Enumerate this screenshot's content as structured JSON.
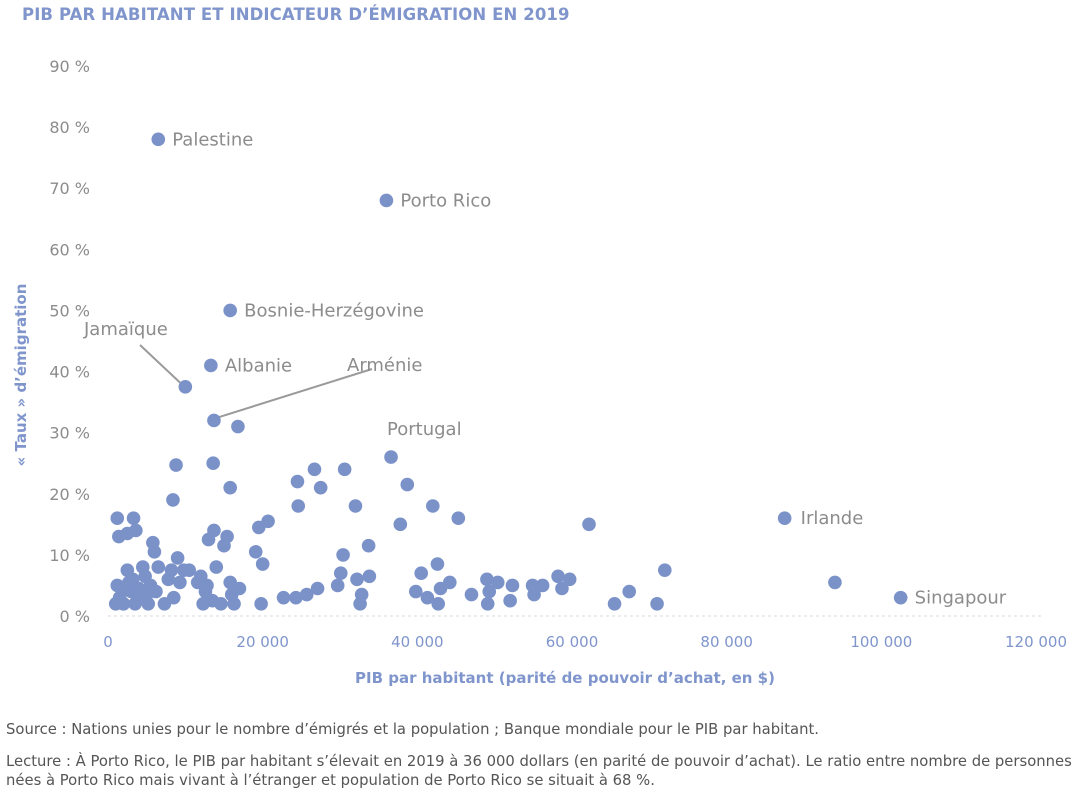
{
  "title": "PIB PAR HABITANT ET INDICATEUR D’ÉMIGRATION EN 2019",
  "source": "Source : Nations unies pour le nombre d’émigrés et la population ; Banque mondiale pour le PIB par habitant.",
  "reading": "Lecture : À Porto Rico, le PIB par habitant s’élevait en 2019 à 36 000 dollars (en parité de pouvoir d’achat). Le ratio entre nombre de personnes nées à Porto Rico mais vivant à l’étranger et population de Porto Rico se situait à 68 %.",
  "colors": {
    "accent": "#7f95cc",
    "marker": "#7b92c9",
    "label": "#8c8c8c",
    "grid": "#d9d9d9",
    "text": "#555555"
  },
  "chart_data": {
    "type": "scatter",
    "xlabel": "PIB par habitant (parité de pouvoir d’achat, en $)",
    "ylabel": "« Taux » d’émigration",
    "xlim": [
      0,
      120000
    ],
    "ylim": [
      0,
      90
    ],
    "x_ticks": [
      0,
      20000,
      40000,
      60000,
      80000,
      100000,
      120000
    ],
    "x_tick_labels": [
      "0",
      "20 000",
      "40 000",
      "60 000",
      "80 000",
      "100 000",
      "120 000"
    ],
    "y_ticks": [
      0,
      10,
      20,
      30,
      40,
      50,
      60,
      70,
      80,
      90
    ],
    "y_tick_labels": [
      "0 %",
      "10 %",
      "20 %",
      "30 %",
      "40 %",
      "50 %",
      "60 %",
      "70 %",
      "80 %",
      "90 %"
    ],
    "labeled_points": [
      {
        "label": "Palestine",
        "x": 6500,
        "y": 78
      },
      {
        "label": "Porto Rico",
        "x": 36000,
        "y": 68
      },
      {
        "label": "Bosnie-Herzégovine",
        "x": 15800,
        "y": 50
      },
      {
        "label": "Albanie",
        "x": 13300,
        "y": 41
      },
      {
        "label": "Jamaïque",
        "x": 10000,
        "y": 37.5
      },
      {
        "label": "Arménie",
        "x": 13700,
        "y": 32
      },
      {
        "label": "Portugal",
        "x": 36600,
        "y": 26
      },
      {
        "label": "Irlande",
        "x": 87500,
        "y": 16
      },
      {
        "label": "Singapour",
        "x": 102500,
        "y": 3
      }
    ],
    "points": [
      [
        1200,
        16
      ],
      [
        1400,
        13
      ],
      [
        2500,
        13.5
      ],
      [
        3300,
        16
      ],
      [
        3600,
        14
      ],
      [
        5800,
        12
      ],
      [
        6000,
        10.5
      ],
      [
        8400,
        19
      ],
      [
        8800,
        24.7
      ],
      [
        1200,
        5
      ],
      [
        1500,
        3
      ],
      [
        2000,
        2
      ],
      [
        2500,
        7.5
      ],
      [
        2700,
        5.5
      ],
      [
        3000,
        4
      ],
      [
        3200,
        6
      ],
      [
        3500,
        2
      ],
      [
        4000,
        4.5
      ],
      [
        4300,
        3
      ],
      [
        4500,
        8
      ],
      [
        4800,
        6.5
      ],
      [
        5000,
        3.5
      ],
      [
        5200,
        2
      ],
      [
        5500,
        5
      ],
      [
        6200,
        4
      ],
      [
        6500,
        8
      ],
      [
        7300,
        2
      ],
      [
        7800,
        6
      ],
      [
        8200,
        7.5
      ],
      [
        8500,
        3
      ],
      [
        9000,
        9.5
      ],
      [
        9300,
        5.5
      ],
      [
        9800,
        7.5
      ],
      [
        1000,
        2
      ],
      [
        2000,
        2
      ],
      [
        2200,
        4.5
      ],
      [
        3800,
        3.5
      ],
      [
        10500,
        7.5
      ],
      [
        11600,
        5.5
      ],
      [
        12000,
        6.5
      ],
      [
        12300,
        2
      ],
      [
        12600,
        4
      ],
      [
        12800,
        5
      ],
      [
        13000,
        12.5
      ],
      [
        13500,
        2.5
      ],
      [
        13700,
        14
      ],
      [
        14000,
        8
      ],
      [
        14600,
        2
      ],
      [
        15000,
        11.5
      ],
      [
        15400,
        13
      ],
      [
        15800,
        5.5
      ],
      [
        16000,
        3.5
      ],
      [
        16300,
        2
      ],
      [
        16800,
        31
      ],
      [
        17000,
        4.5
      ],
      [
        13600,
        25
      ],
      [
        15800,
        21
      ],
      [
        19100,
        10.5
      ],
      [
        19500,
        14.5
      ],
      [
        19800,
        2
      ],
      [
        20000,
        8.5
      ],
      [
        20700,
        15.5
      ],
      [
        22700,
        3
      ],
      [
        24300,
        3
      ],
      [
        24500,
        22
      ],
      [
        24600,
        18
      ],
      [
        25700,
        3.5
      ],
      [
        26700,
        24
      ],
      [
        27100,
        4.5
      ],
      [
        27500,
        21
      ],
      [
        29700,
        5
      ],
      [
        30100,
        7
      ],
      [
        30400,
        10
      ],
      [
        30600,
        24
      ],
      [
        32000,
        18
      ],
      [
        32200,
        6
      ],
      [
        32600,
        2
      ],
      [
        32800,
        3.5
      ],
      [
        33700,
        11.5
      ],
      [
        33800,
        6.5
      ],
      [
        37800,
        15
      ],
      [
        38700,
        21.5
      ],
      [
        39800,
        4
      ],
      [
        40500,
        7
      ],
      [
        41300,
        3
      ],
      [
        42000,
        18
      ],
      [
        42600,
        8.5
      ],
      [
        42700,
        2
      ],
      [
        43000,
        4.5
      ],
      [
        44200,
        5.5
      ],
      [
        45300,
        16
      ],
      [
        47000,
        3.5
      ],
      [
        49000,
        6
      ],
      [
        49100,
        2
      ],
      [
        49300,
        4
      ],
      [
        50400,
        5.5
      ],
      [
        52000,
        2.5
      ],
      [
        52300,
        5
      ],
      [
        54900,
        5
      ],
      [
        55100,
        3.5
      ],
      [
        56200,
        5
      ],
      [
        58200,
        6.5
      ],
      [
        58700,
        4.5
      ],
      [
        59700,
        6
      ],
      [
        62200,
        15
      ],
      [
        65500,
        2
      ],
      [
        67400,
        4
      ],
      [
        71000,
        2
      ],
      [
        72000,
        7.5
      ],
      [
        94000,
        5.5
      ]
    ]
  }
}
